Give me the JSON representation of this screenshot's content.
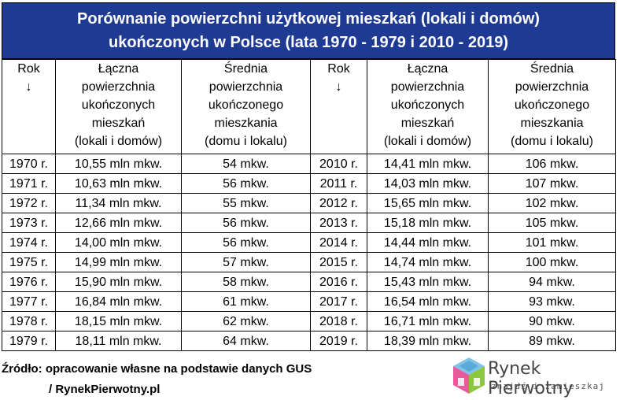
{
  "title": {
    "line1": "Porównanie powierzchni użytkowej mieszkań (lokali i domów)",
    "line2": "ukończonych w Polsce (lata 1970 - 1979 i 2010 - 2019)"
  },
  "headers": [
    [
      "Rok",
      "↓"
    ],
    [
      "Łączna",
      "powierzchnia",
      "ukończonych",
      "mieszkań",
      "(lokali i domów)"
    ],
    [
      "Średnia",
      "powierzchnia",
      "ukończonego",
      "mieszkania",
      "(domu i lokalu)"
    ],
    [
      "Rok",
      "↓"
    ],
    [
      "Łączna",
      "powierzchnia",
      "ukończonych",
      "mieszkań",
      "(lokali i domów)"
    ],
    [
      "Średnia",
      "powierzchnia",
      "ukończonego",
      "mieszkania",
      "(domu i lokalu)"
    ]
  ],
  "rows": [
    {
      "y1": "1970 r.",
      "t1": "10,55 mln mkw.",
      "a1": "54 mkw.",
      "y2": "2010 r.",
      "t2": "14,41 mln mkw.",
      "a2": "106 mkw.",
      "bold": [
        "t1",
        "a1"
      ]
    },
    {
      "y1": "1971 r.",
      "t1": "10,63 mln mkw.",
      "a1": "56 mkw.",
      "y2": "2011 r.",
      "t2": "14,03 mln mkw.",
      "a2": "107 mkw.",
      "bold": [
        "a2"
      ]
    },
    {
      "y1": "1972 r.",
      "t1": "11,34 mln mkw.",
      "a1": "55 mkw.",
      "y2": "2012 r.",
      "t2": "15,65 mln mkw.",
      "a2": "102 mkw.",
      "bold": []
    },
    {
      "y1": "1973 r.",
      "t1": "12,66 mln mkw.",
      "a1": "56 mkw.",
      "y2": "2013 r.",
      "t2": "15,18 mln mkw.",
      "a2": "105 mkw.",
      "bold": []
    },
    {
      "y1": "1974 r.",
      "t1": "14,00 mln mkw.",
      "a1": "56 mkw.",
      "y2": "2014 r.",
      "t2": "14,44 mln mkw.",
      "a2": "101 mkw.",
      "bold": []
    },
    {
      "y1": "1975 r.",
      "t1": "14,99 mln mkw.",
      "a1": "57 mkw.",
      "y2": "2015 r.",
      "t2": "14,74 mln mkw.",
      "a2": "100 mkw.",
      "bold": []
    },
    {
      "y1": "1976 r.",
      "t1": "15,90 mln mkw.",
      "a1": "58 mkw.",
      "y2": "2016 r.",
      "t2": "15,43 mln mkw.",
      "a2": "94 mkw.",
      "bold": []
    },
    {
      "y1": "1977 r.",
      "t1": "16,84 mln mkw.",
      "a1": "61 mkw.",
      "y2": "2017 r.",
      "t2": "16,54 mln mkw.",
      "a2": "93 mkw.",
      "bold": []
    },
    {
      "y1": "1978 r.",
      "t1": "18,15 mln mkw.",
      "a1": "62 mkw.",
      "y2": "2018 r.",
      "t2": "16,71 mln mkw.",
      "a2": "90 mkw.",
      "bold": [
        "t1"
      ]
    },
    {
      "y1": "1979 r.",
      "t1": "18,11 mln mkw.",
      "a1": "64 mkw.",
      "y2": "2019 r.",
      "t2": "18,39 mln mkw.",
      "a2": "89 mkw.",
      "bold": [
        "t1",
        "t2",
        "a2"
      ]
    }
  ],
  "footer": {
    "line1": "Źródło: opracowanie własne na podstawie danych GUS",
    "line2": "/ RynekPierwotny.pl"
  },
  "logo": {
    "brand": "Rynek Pierwotny",
    "tagline": "znajdź i zamieszkaj",
    "icon": "house-cube-logo-icon"
  },
  "colors": {
    "header_bg": "#1f3a93",
    "header_text": "#ffffff"
  }
}
